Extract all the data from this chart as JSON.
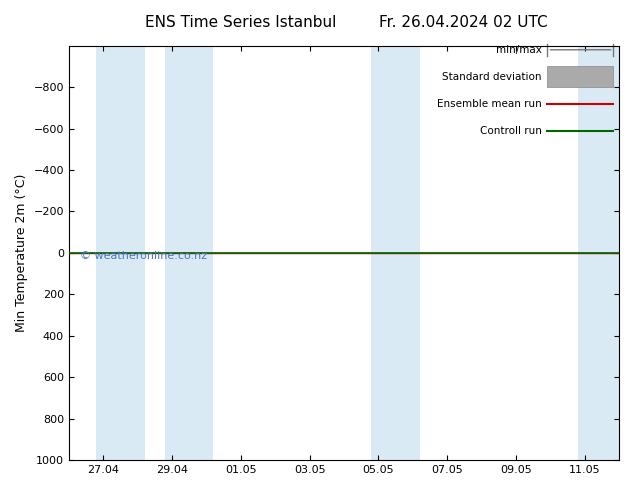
{
  "title": "ENS Time Series Istanbul",
  "title2": "Fr. 26.04.2024 02 UTC",
  "ylabel": "Min Temperature 2m (°C)",
  "watermark": "© weatheronline.co.nz",
  "ylim_top": -1000,
  "ylim_bottom": 1000,
  "yticks": [
    -800,
    -600,
    -400,
    -200,
    0,
    200,
    400,
    600,
    800,
    1000
  ],
  "xtick_labels": [
    "27.04",
    "29.04",
    "01.05",
    "03.05",
    "05.05",
    "07.05",
    "09.05",
    "11.05"
  ],
  "xtick_positions": [
    1,
    3,
    5,
    7,
    9,
    11,
    13,
    15
  ],
  "x_min": 0,
  "x_max": 16,
  "shaded_bands": [
    [
      0.8,
      2.2
    ],
    [
      2.8,
      4.2
    ],
    [
      8.8,
      10.2
    ],
    [
      14.8,
      16.0
    ]
  ],
  "control_run_color": "#006600",
  "ensemble_mean_color": "#cc0000",
  "minmax_color": "#777777",
  "stddev_fill_color": "#bbbbbb",
  "bg_color": "#ffffff",
  "shade_color": "#daeaf5",
  "watermark_color": "#4477cc",
  "legend_labels": [
    "min/max",
    "Standard deviation",
    "Ensemble mean run",
    "Controll run"
  ],
  "legend_line_colors": [
    "#777777",
    "#aaaaaa",
    "#cc0000",
    "#006600"
  ],
  "title_fontsize": 11,
  "tick_fontsize": 8,
  "ylabel_fontsize": 9
}
